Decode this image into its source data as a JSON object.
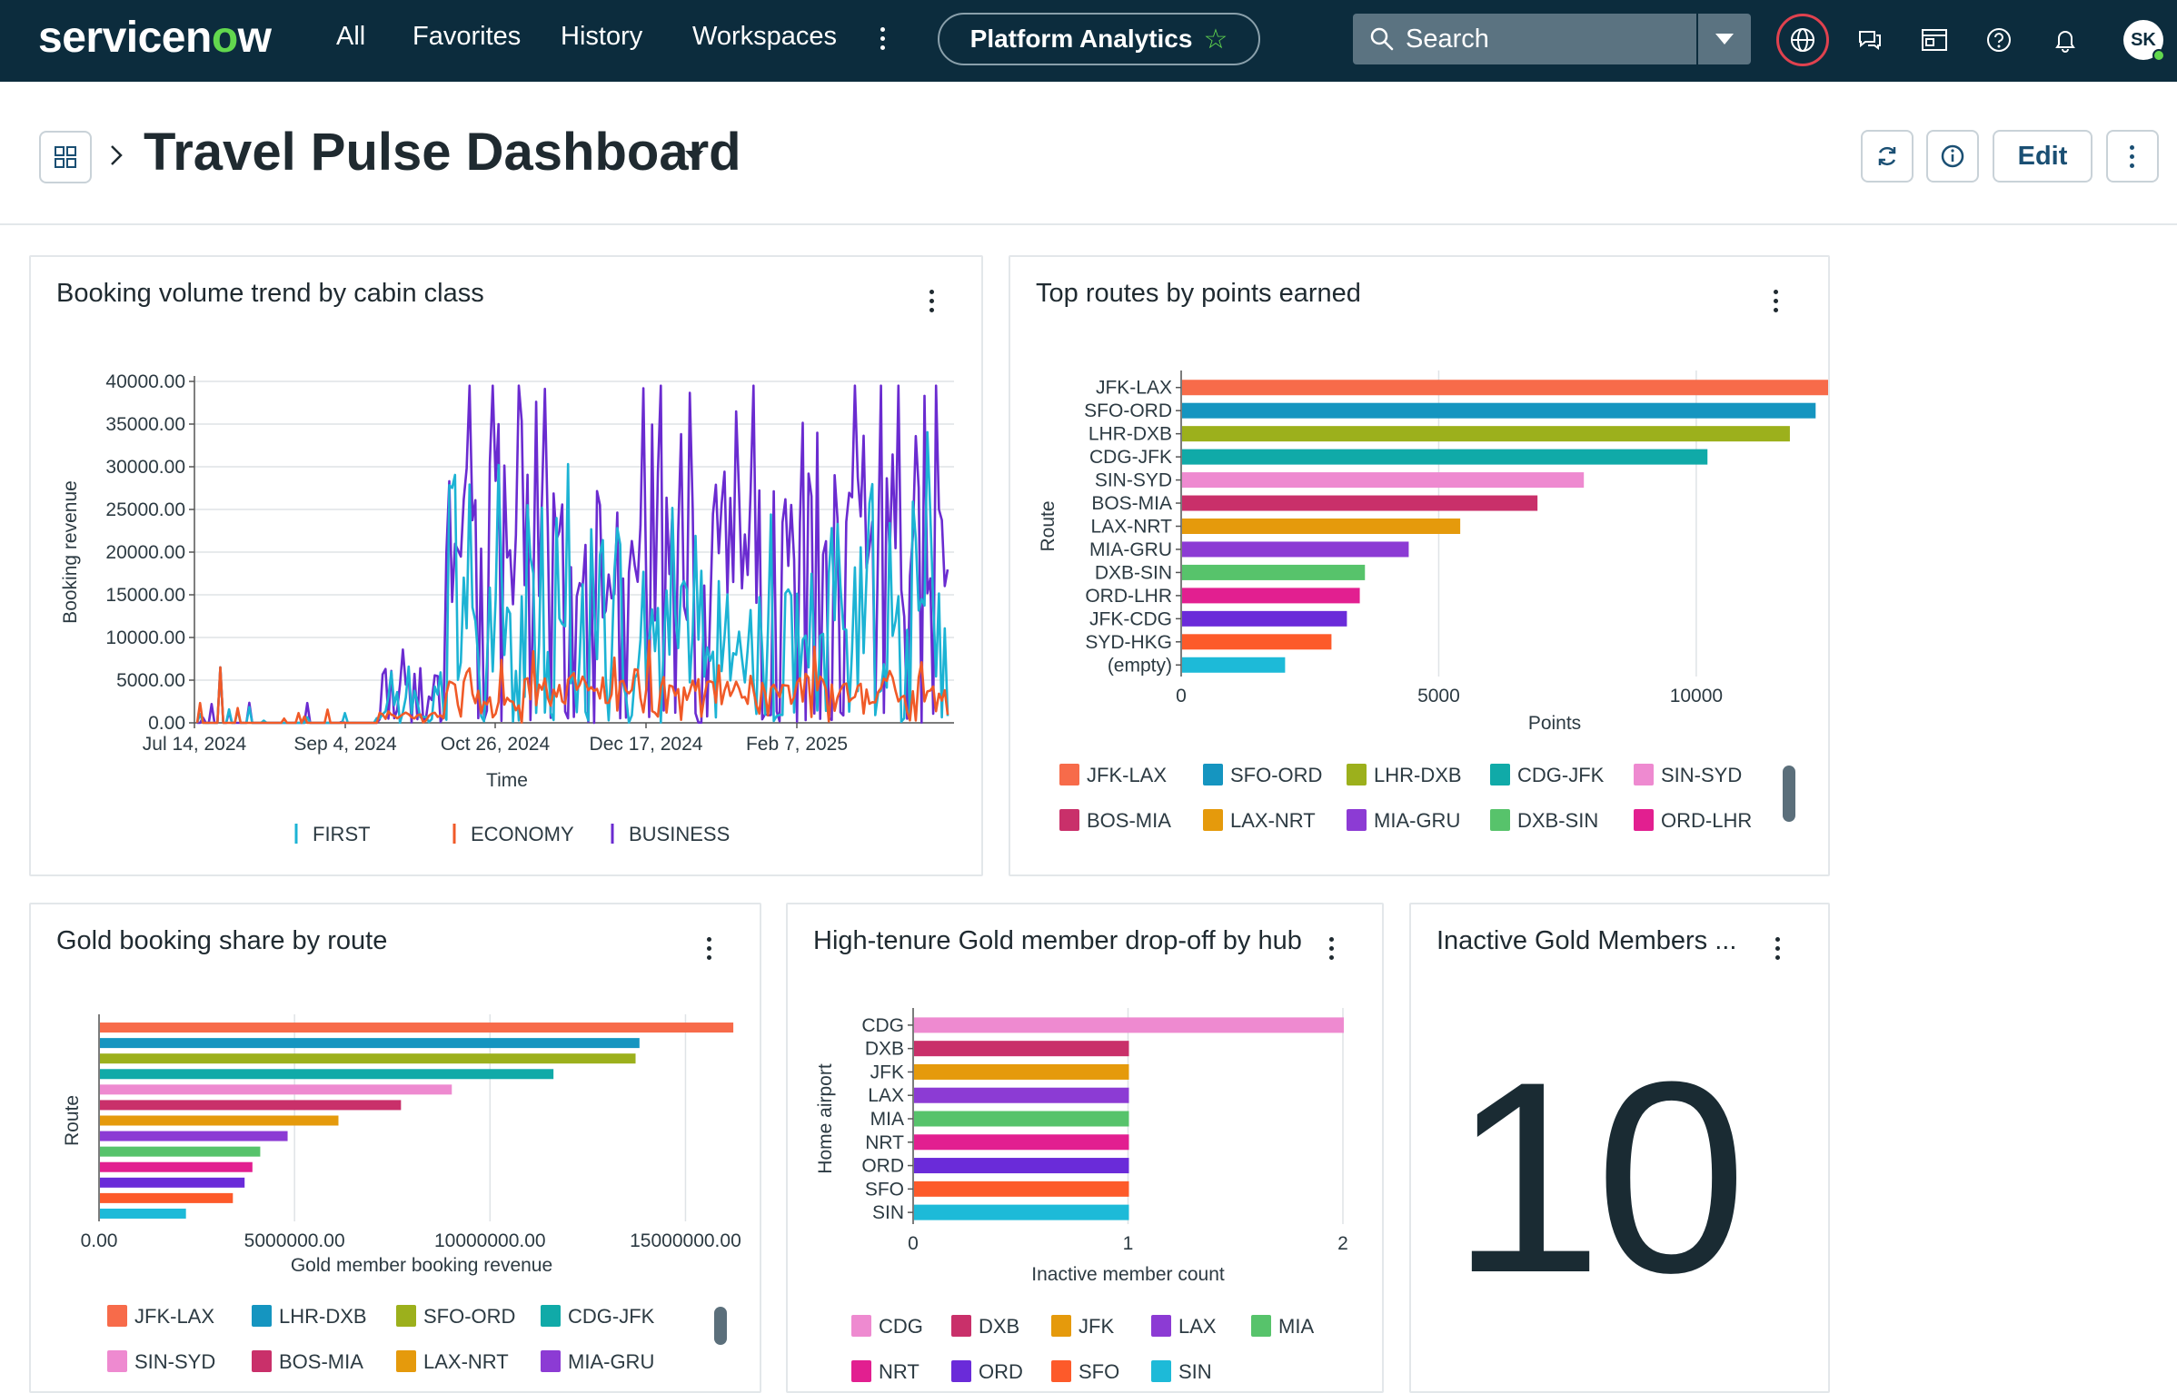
{
  "nav": {
    "logo_pre": "servicen",
    "logo_o": "o",
    "logo_post": "w",
    "links": [
      "All",
      "Favorites",
      "History",
      "Workspaces"
    ],
    "pill_label": "Platform Analytics",
    "search_label": "Search",
    "avatar_initials": "SK"
  },
  "header": {
    "title": "Travel Pulse Dashboard",
    "edit_label": "Edit"
  },
  "cards": {
    "booking": {
      "title": "Booking volume trend by cabin class",
      "chart_data": {
        "type": "line",
        "xlabel": "Time",
        "ylabel": "Booking revenue",
        "ylim": [
          0,
          40000
        ],
        "yticks": [
          "0.00",
          "5000.00",
          "10000.00",
          "15000.00",
          "20000.00",
          "25000.00",
          "30000.00",
          "35000.00",
          "40000.00"
        ],
        "xticks": [
          "Jul 14, 2024",
          "Sep 4, 2024",
          "Oct 26, 2024",
          "Dec 17, 2024",
          "Feb 7, 2025"
        ],
        "series": [
          {
            "name": "FIRST",
            "color": "#1cb3d4"
          },
          {
            "name": "ECONOMY",
            "color": "#f05a28"
          },
          {
            "name": "BUSINESS",
            "color": "#6a2bd0"
          }
        ]
      }
    },
    "top_routes": {
      "title": "Top routes by points earned",
      "chart_data": {
        "type": "bar",
        "orientation": "horizontal",
        "ylabel": "Route",
        "xlabel": "Points",
        "xlim": [
          0,
          14500
        ],
        "xticks": [
          "0",
          "5000",
          "10000"
        ],
        "categories": [
          "JFK-LAX",
          "SFO-ORD",
          "LHR-DXB",
          "CDG-JFK",
          "SIN-SYD",
          "BOS-MIA",
          "LAX-NRT",
          "MIA-GRU",
          "DXB-SIN",
          "ORD-LHR",
          "JFK-CDG",
          "SYD-HKG",
          "(empty)"
        ],
        "values": [
          14200,
          12300,
          11800,
          10200,
          7800,
          6900,
          5400,
          4400,
          3550,
          3450,
          3200,
          2900,
          2000
        ],
        "colors": [
          "#f76b4a",
          "#1595c0",
          "#9cb01c",
          "#10aaa8",
          "#ee8ad0",
          "#c9306a",
          "#e59a0c",
          "#8c3bd4",
          "#57c36b",
          "#e21f90",
          "#6a2bd9",
          "#fd5a2a",
          "#1dbad8"
        ],
        "legend": [
          "JFK-LAX",
          "SFO-ORD",
          "LHR-DXB",
          "CDG-JFK",
          "SIN-SYD",
          "BOS-MIA",
          "LAX-NRT",
          "MIA-GRU",
          "DXB-SIN",
          "ORD-LHR"
        ]
      }
    },
    "gold_share": {
      "title": "Gold booking share by route",
      "chart_data": {
        "type": "bar",
        "orientation": "horizontal",
        "ylabel": "Route",
        "xlabel": "Gold member booking revenue",
        "xlim": [
          0,
          16500000
        ],
        "xticks": [
          "0.00",
          "5000000.00",
          "10000000.00",
          "15000000.00"
        ],
        "values": [
          16200000,
          13800000,
          13700000,
          11600000,
          9000000,
          7700000,
          6100000,
          4800000,
          4100000,
          3900000,
          3700000,
          3400000,
          2200000
        ],
        "colors": [
          "#f76b4a",
          "#1595c0",
          "#9cb01c",
          "#10aaa8",
          "#ee8ad0",
          "#c9306a",
          "#e59a0c",
          "#8c3bd4",
          "#57c36b",
          "#e21f90",
          "#6a2bd9",
          "#fd5a2a",
          "#1dbad8"
        ],
        "legend": [
          "JFK-LAX",
          "LHR-DXB",
          "SFO-ORD",
          "CDG-JFK",
          "SIN-SYD",
          "BOS-MIA",
          "LAX-NRT",
          "MIA-GRU"
        ],
        "legend_colors": [
          "#f76b4a",
          "#1595c0",
          "#9cb01c",
          "#10aaa8",
          "#ee8ad0",
          "#c9306a",
          "#e59a0c",
          "#8c3bd4"
        ]
      }
    },
    "dropoff": {
      "title": "High-tenure Gold member drop-off by hub",
      "chart_data": {
        "type": "bar",
        "orientation": "horizontal",
        "ylabel": "Home airport",
        "xlabel": "Inactive member count",
        "xlim": [
          0,
          2
        ],
        "xticks": [
          "0",
          "1",
          "2"
        ],
        "categories": [
          "CDG",
          "DXB",
          "JFK",
          "LAX",
          "MIA",
          "NRT",
          "ORD",
          "SFO",
          "SIN"
        ],
        "values": [
          2,
          1,
          1,
          1,
          1,
          1,
          1,
          1,
          1
        ],
        "colors": [
          "#ee8ad0",
          "#c9306a",
          "#e59a0c",
          "#8c3bd4",
          "#57c36b",
          "#e21f90",
          "#6a2bd9",
          "#fd5a2a",
          "#1dbad8"
        ],
        "legend": [
          "CDG",
          "DXB",
          "JFK",
          "LAX",
          "MIA",
          "NRT",
          "ORD",
          "SFO",
          "SIN"
        ]
      }
    },
    "inactive": {
      "title": "Inactive Gold Members ...",
      "value": "10"
    }
  }
}
